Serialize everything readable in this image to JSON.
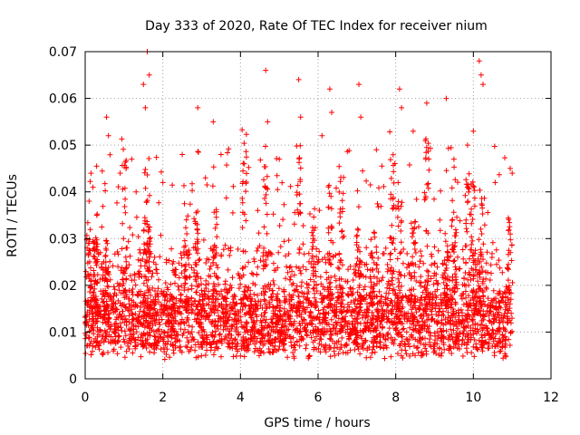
{
  "chart_data": {
    "type": "scatter",
    "title": "Day 333 of 2020, Rate Of TEC Index for receiver nium",
    "xlabel": "GPS time / hours",
    "ylabel": "ROTI / TECUs",
    "xlim": [
      0,
      12
    ],
    "ylim": [
      0,
      0.07
    ],
    "xticks": [
      "0",
      "2",
      "4",
      "6",
      "8",
      "10",
      "12"
    ],
    "yticks": [
      "0",
      "0.01",
      "0.02",
      "0.03",
      "0.04",
      "0.05",
      "0.06",
      "0.07"
    ],
    "grid": true,
    "marker": "+",
    "color": "#ff0000",
    "x_range_of_data": [
      0,
      11.0
    ],
    "sample_points": [
      [
        0.05,
        0.028
      ],
      [
        0.1,
        0.038
      ],
      [
        0.15,
        0.044
      ],
      [
        0.2,
        0.041
      ],
      [
        0.3,
        0.035
      ],
      [
        0.55,
        0.056
      ],
      [
        0.6,
        0.052
      ],
      [
        0.9,
        0.044
      ],
      [
        1.2,
        0.047
      ],
      [
        1.5,
        0.063
      ],
      [
        1.55,
        0.058
      ],
      [
        1.6,
        0.07
      ],
      [
        1.65,
        0.065
      ],
      [
        2.0,
        0.042
      ],
      [
        2.5,
        0.048
      ],
      [
        2.9,
        0.058
      ],
      [
        3.3,
        0.055
      ],
      [
        3.5,
        0.048
      ],
      [
        4.1,
        0.046
      ],
      [
        4.65,
        0.066
      ],
      [
        4.7,
        0.055
      ],
      [
        5.0,
        0.047
      ],
      [
        5.5,
        0.064
      ],
      [
        5.55,
        0.056
      ],
      [
        6.1,
        0.052
      ],
      [
        6.3,
        0.062
      ],
      [
        6.35,
        0.057
      ],
      [
        7.05,
        0.063
      ],
      [
        7.1,
        0.056
      ],
      [
        7.5,
        0.049
      ],
      [
        8.1,
        0.062
      ],
      [
        8.15,
        0.058
      ],
      [
        8.45,
        0.053
      ],
      [
        8.8,
        0.059
      ],
      [
        9.3,
        0.06
      ],
      [
        9.5,
        0.047
      ],
      [
        9.85,
        0.05
      ],
      [
        10.0,
        0.053
      ],
      [
        10.15,
        0.068
      ],
      [
        10.2,
        0.065
      ],
      [
        10.25,
        0.063
      ],
      [
        10.95,
        0.045
      ],
      [
        11.0,
        0.044
      ]
    ]
  }
}
